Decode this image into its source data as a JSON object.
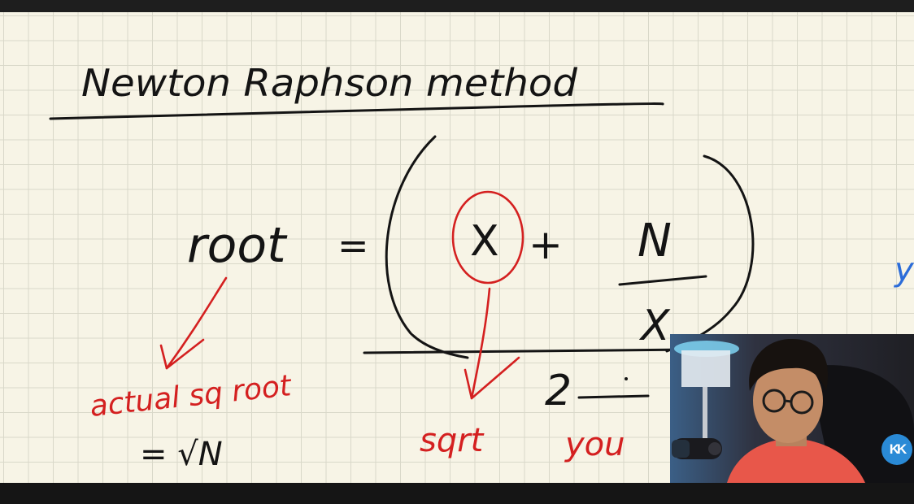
{
  "whiteboard": {
    "title": "Newton Raphson method",
    "formula": {
      "lhs": "root",
      "equals": "=",
      "term_x": "X",
      "plus": "+",
      "numerator": "N",
      "denominator": "X",
      "divisor": "2"
    },
    "annotations": {
      "left_note": "actual sq root",
      "left_value": "= √N",
      "under_x": "sqrt",
      "under_x_2": "you",
      "right_edge": "y"
    }
  },
  "presenter": {
    "channel_logo": "KK"
  },
  "colors": {
    "paper": "#f7f4e6",
    "grid": "#d9d8c9",
    "ink": "#141414",
    "red_ink": "#d42020",
    "blue_ink": "#2b6cd9",
    "logo": "#2a8ad6"
  }
}
